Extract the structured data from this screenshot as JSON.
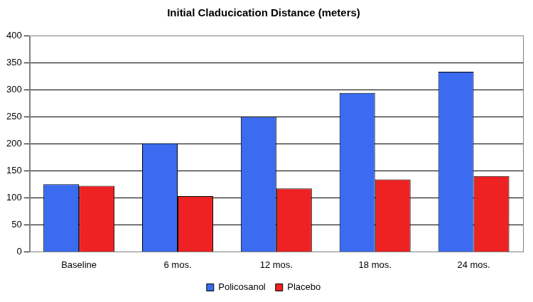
{
  "chart_data": {
    "type": "bar",
    "title": "Initial Claducication Distance (meters)",
    "categories": [
      "Baseline",
      "6 mos.",
      "12 mos.",
      "18 mos.",
      "24 mos."
    ],
    "series": [
      {
        "name": "Policosanol",
        "color": "#3a6bf0",
        "values": [
          125,
          201,
          250,
          294,
          333
        ]
      },
      {
        "name": "Placebo",
        "color": "#ee2222",
        "values": [
          122,
          103,
          117,
          134,
          140
        ]
      }
    ],
    "ylim": [
      0,
      400
    ],
    "yticks": [
      0,
      50,
      100,
      150,
      200,
      250,
      300,
      350,
      400
    ],
    "grid": true,
    "legend": "bottom"
  }
}
